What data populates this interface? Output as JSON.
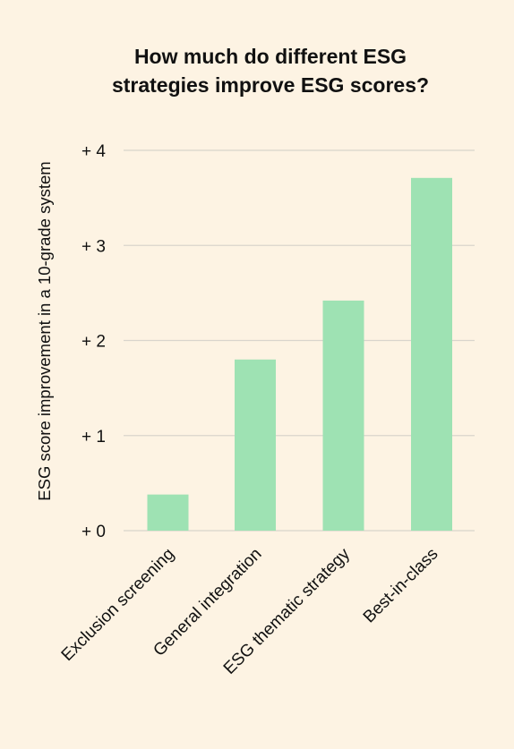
{
  "chart_data": {
    "type": "bar",
    "title_lines": [
      "How much do different ESG",
      "strategies improve ESG scores?"
    ],
    "ylabel": "ESG score improvement in a 10-grade system",
    "xlabel": "",
    "categories": [
      "Exclusion screening",
      "General integration",
      "ESG thematic strategy",
      "Best-in-class"
    ],
    "values": [
      0.38,
      1.8,
      2.42,
      3.71
    ],
    "ylim": [
      0,
      4
    ],
    "yticks": [
      0,
      1,
      2,
      3,
      4
    ],
    "ytick_labels": [
      "+ 0",
      "+ 1",
      "+ 2",
      "+ 3",
      "+ 4"
    ],
    "grid": true,
    "bar_color": "#9ee2b3",
    "background": "#fdf3e3"
  }
}
